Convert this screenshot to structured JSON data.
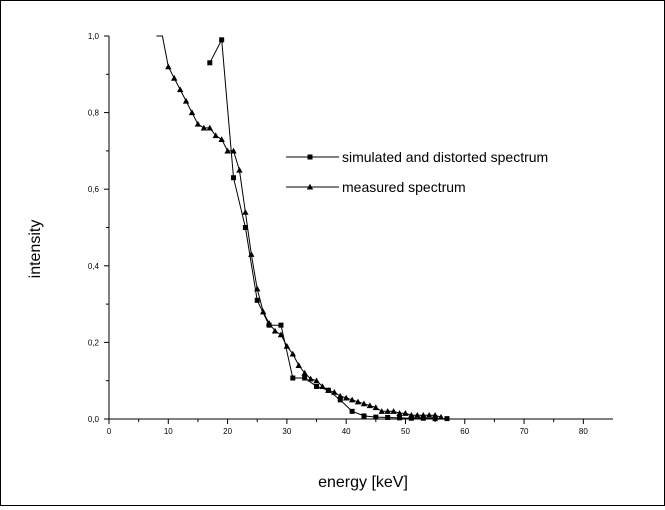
{
  "chart_data": {
    "type": "line",
    "title": "",
    "xlabel": "energy [keV]",
    "ylabel": "intensity",
    "xlim": [
      0,
      85
    ],
    "ylim": [
      0,
      1.0
    ],
    "x_ticks": [
      "0",
      "10",
      "20",
      "30",
      "40",
      "50",
      "60",
      "70",
      "80"
    ],
    "y_ticks": [
      "0,0",
      "0,2",
      "0,4",
      "0,6",
      "0,8",
      "1,0"
    ],
    "grid": false,
    "legend_position": "center-right",
    "series": [
      {
        "name": "simulated and distorted spectrum",
        "marker": "square",
        "color": "#000000",
        "x": [
          17,
          19,
          21,
          23,
          25,
          27,
          29,
          31,
          33,
          35,
          37,
          39,
          41,
          43,
          45,
          47,
          49,
          51,
          53,
          55,
          57
        ],
        "y": [
          0.93,
          0.99,
          0.63,
          0.5,
          0.31,
          0.245,
          0.245,
          0.107,
          0.107,
          0.085,
          0.075,
          0.05,
          0.02,
          0.008,
          0.005,
          0.004,
          0.003,
          0.002,
          0.002,
          0.001,
          0.001
        ]
      },
      {
        "name": "measured spectrum",
        "marker": "triangle",
        "color": "#000000",
        "x": [
          8,
          9,
          10,
          11,
          12,
          13,
          14,
          15,
          16,
          17,
          18,
          19,
          20,
          21,
          22,
          23,
          24,
          25,
          26,
          27,
          28,
          29,
          30,
          31,
          32,
          33,
          34,
          35,
          36,
          37,
          38,
          39,
          40,
          41,
          42,
          43,
          44,
          45,
          46,
          47,
          48,
          49,
          50,
          51,
          52,
          53,
          54,
          55,
          56
        ],
        "y": [
          1.0,
          1.0,
          0.92,
          0.89,
          0.86,
          0.83,
          0.8,
          0.77,
          0.76,
          0.76,
          0.74,
          0.73,
          0.7,
          0.7,
          0.65,
          0.54,
          0.43,
          0.34,
          0.28,
          0.25,
          0.23,
          0.22,
          0.19,
          0.17,
          0.14,
          0.12,
          0.105,
          0.1,
          0.085,
          0.075,
          0.07,
          0.06,
          0.055,
          0.05,
          0.045,
          0.04,
          0.035,
          0.03,
          0.02,
          0.02,
          0.02,
          0.015,
          0.015,
          0.01,
          0.01,
          0.01,
          0.01,
          0.01,
          0.005
        ]
      }
    ]
  }
}
